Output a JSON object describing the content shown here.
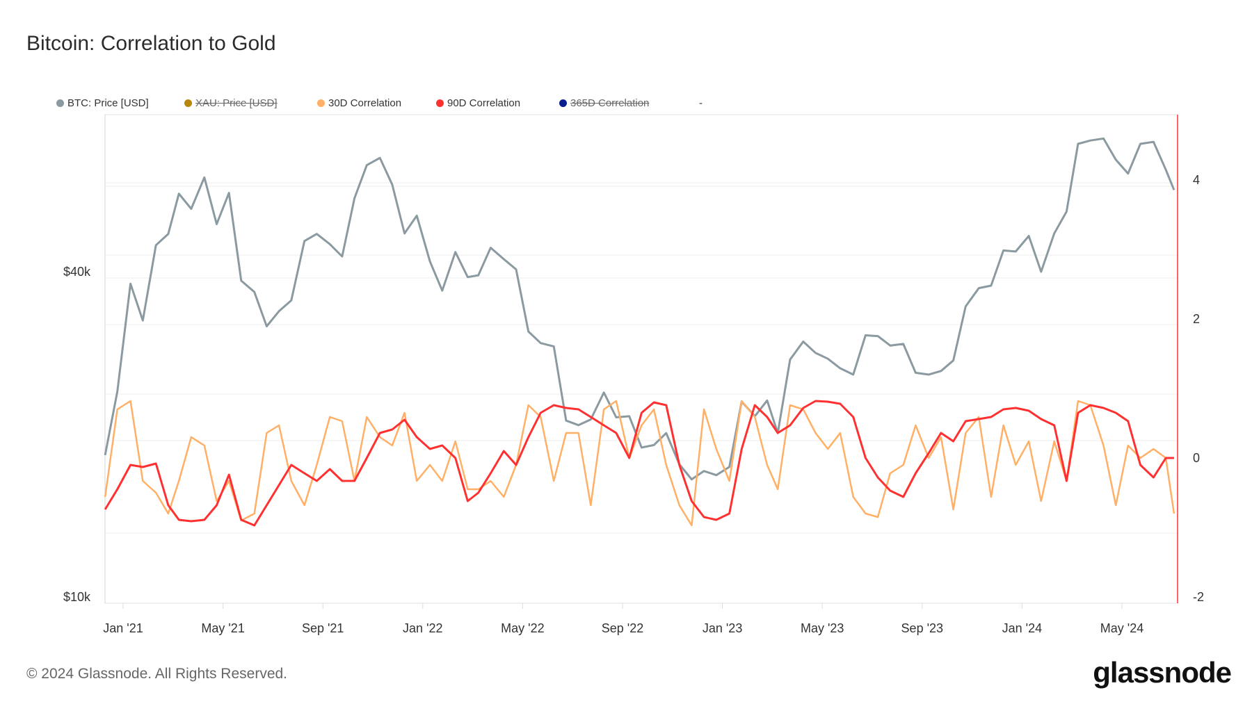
{
  "title": "Bitcoin: Correlation to Gold",
  "legend": [
    {
      "label": "BTC: Price [USD]",
      "color": "#8a9aa0",
      "hidden": false
    },
    {
      "label": "XAU: Price [USD]",
      "color": "#b8860b",
      "hidden": true
    },
    {
      "label": "30D Correlation",
      "color": "#ffb066",
      "hidden": false
    },
    {
      "label": "90D Correlation",
      "color": "#ff3030",
      "hidden": false
    },
    {
      "label": "365D Correlation",
      "color": "#0a1f8f",
      "hidden": true
    },
    {
      "label": "-",
      "color": "",
      "hidden": false
    }
  ],
  "footer": "© 2024 Glassnode. All Rights Reserved.",
  "logo": "glassnode",
  "chart_data": {
    "type": "line",
    "title": "Bitcoin: Correlation to Gold",
    "x_tick_labels": [
      "Jan '21",
      "May '21",
      "Sep '21",
      "Jan '22",
      "May '22",
      "Sep '22",
      "Jan '23",
      "May '23",
      "Sep '23",
      "Jan '24",
      "May '24"
    ],
    "y_left": {
      "scale": "log",
      "tick_labels": [
        "$40k",
        "$10k"
      ],
      "ticks": [
        40000,
        10000
      ]
    },
    "y_right": {
      "scale": "linear",
      "tick_labels": [
        "4",
        "2",
        "0",
        "-2"
      ],
      "ticks": [
        4,
        2,
        0,
        -2
      ]
    },
    "grid": true,
    "legend_position": "top-left",
    "x": [
      "2020-12-10",
      "2020-12-25",
      "2021-01-10",
      "2021-01-25",
      "2021-02-10",
      "2021-02-25",
      "2021-03-10",
      "2021-03-25",
      "2021-04-10",
      "2021-04-25",
      "2021-05-10",
      "2021-05-25",
      "2021-06-10",
      "2021-06-25",
      "2021-07-10",
      "2021-07-25",
      "2021-08-10",
      "2021-08-25",
      "2021-09-10",
      "2021-09-25",
      "2021-10-10",
      "2021-10-25",
      "2021-11-10",
      "2021-11-25",
      "2021-12-10",
      "2021-12-25",
      "2022-01-10",
      "2022-01-25",
      "2022-02-10",
      "2022-02-25",
      "2022-03-10",
      "2022-03-25",
      "2022-04-10",
      "2022-04-25",
      "2022-05-10",
      "2022-05-25",
      "2022-06-10",
      "2022-06-25",
      "2022-07-10",
      "2022-07-25",
      "2022-08-10",
      "2022-08-25",
      "2022-09-10",
      "2022-09-25",
      "2022-10-10",
      "2022-10-25",
      "2022-11-10",
      "2022-11-25",
      "2022-12-10",
      "2022-12-25",
      "2023-01-10",
      "2023-01-25",
      "2023-02-10",
      "2023-02-25",
      "2023-03-10",
      "2023-03-25",
      "2023-04-10",
      "2023-04-25",
      "2023-05-10",
      "2023-05-25",
      "2023-06-10",
      "2023-06-25",
      "2023-07-10",
      "2023-07-25",
      "2023-08-10",
      "2023-08-25",
      "2023-09-10",
      "2023-09-25",
      "2023-10-10",
      "2023-10-25",
      "2023-11-10",
      "2023-11-25",
      "2023-12-10",
      "2023-12-25",
      "2024-01-10",
      "2024-01-25",
      "2024-02-10",
      "2024-02-25",
      "2024-03-10",
      "2024-03-25",
      "2024-04-10",
      "2024-04-25",
      "2024-05-10",
      "2024-05-25",
      "2024-06-10",
      "2024-06-25",
      "2024-07-05"
    ],
    "series": [
      {
        "name": "BTC: Price [USD]",
        "axis": "left",
        "color": "#8a9aa0",
        "values": [
          18300,
          24000,
          38000,
          32500,
          44800,
          47000,
          55800,
          52300,
          59800,
          49000,
          56000,
          38500,
          36700,
          31700,
          33800,
          35400,
          45600,
          47000,
          45000,
          42700,
          54700,
          63000,
          65000,
          58000,
          47100,
          50800,
          41800,
          36900,
          43500,
          39100,
          39400,
          44300,
          42200,
          40400,
          31000,
          29500,
          29100,
          21200,
          20800,
          21300,
          23900,
          21500,
          21600,
          18900,
          19100,
          20100,
          17600,
          16500,
          17100,
          16800,
          17400,
          23000,
          21600,
          23100,
          20100,
          27500,
          29700,
          28300,
          27600,
          26500,
          25800,
          30500,
          30400,
          29200,
          29400,
          26000,
          25800,
          26200,
          27400,
          34500,
          37300,
          37700,
          43800,
          43600,
          46600,
          40000,
          47100,
          51700,
          69000,
          70000,
          70600,
          64500,
          60800,
          69000,
          69600,
          61800,
          56700
        ]
      },
      {
        "name": "30D Correlation",
        "axis": "right",
        "color": "#ffb066",
        "values": [
          -0.56,
          0.7,
          0.82,
          -0.33,
          -0.5,
          -0.8,
          -0.33,
          0.3,
          0.18,
          -0.62,
          -0.33,
          -0.9,
          -0.8,
          0.36,
          0.47,
          -0.33,
          -0.68,
          -0.1,
          0.59,
          0.53,
          -0.33,
          0.59,
          0.3,
          0.18,
          0.65,
          -0.33,
          -0.1,
          -0.33,
          0.24,
          -0.45,
          -0.45,
          -0.33,
          -0.56,
          -0.1,
          0.76,
          0.59,
          -0.33,
          0.36,
          0.36,
          -0.68,
          0.7,
          0.82,
          0,
          0.47,
          0.7,
          -0.1,
          -0.68,
          -0.97,
          0.7,
          0.13,
          -0.33,
          0.82,
          0.59,
          -0.1,
          -0.45,
          0.76,
          0.7,
          0.36,
          0.13,
          0.36,
          -0.56,
          -0.8,
          -0.85,
          -0.22,
          -0.1,
          0.47,
          0,
          0.3,
          -0.74,
          0.36,
          0.59,
          -0.56,
          0.47,
          -0.1,
          0.24,
          -0.62,
          0.24,
          -0.33,
          0.82,
          0.76,
          0.18,
          -0.68,
          0.18,
          0,
          0.13,
          0,
          -0.8
        ]
      },
      {
        "name": "90D Correlation",
        "axis": "right",
        "color": "#ff3030",
        "values": [
          -0.74,
          -0.45,
          -0.1,
          -0.13,
          -0.08,
          -0.68,
          -0.89,
          -0.91,
          -0.89,
          -0.68,
          -0.24,
          -0.89,
          -0.97,
          -0.68,
          -0.39,
          -0.1,
          -0.22,
          -0.33,
          -0.16,
          -0.33,
          -0.33,
          0,
          0.36,
          0.41,
          0.55,
          0.3,
          0.13,
          0.18,
          0,
          -0.62,
          -0.5,
          -0.22,
          0.1,
          -0.1,
          0.3,
          0.65,
          0.76,
          0.72,
          0.7,
          0.59,
          0.47,
          0.36,
          0,
          0.65,
          0.8,
          0.76,
          -0.1,
          -0.62,
          -0.85,
          -0.89,
          -0.8,
          0.13,
          0.76,
          0.59,
          0.36,
          0.47,
          0.72,
          0.82,
          0.81,
          0.78,
          0.59,
          0,
          -0.28,
          -0.47,
          -0.56,
          -0.22,
          0.07,
          0.36,
          0.24,
          0.53,
          0.56,
          0.59,
          0.7,
          0.72,
          0.68,
          0.56,
          0.47,
          -0.33,
          0.65,
          0.76,
          0.72,
          0.65,
          0.53,
          -0.1,
          -0.28,
          0,
          0
        ]
      }
    ]
  }
}
